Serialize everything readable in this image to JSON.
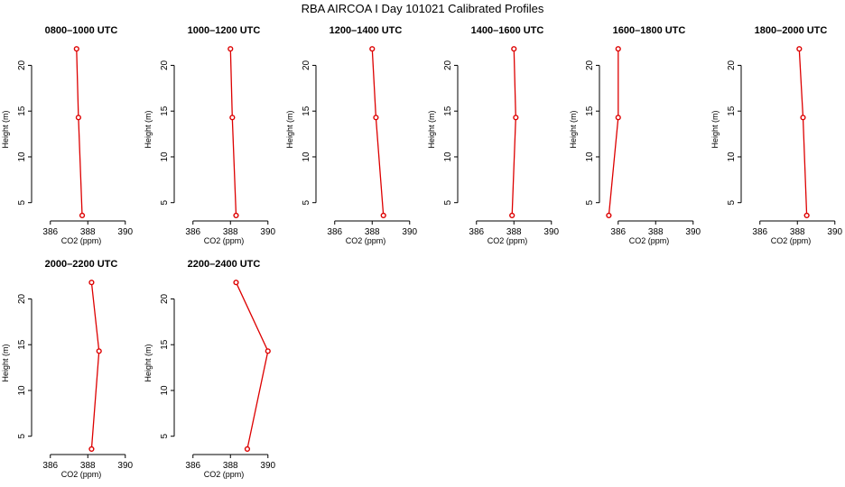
{
  "title": "RBA AIRCOA I  Day 101021  Calibrated Profiles",
  "colors": {
    "series": "#dd0000",
    "axis": "#000000"
  },
  "chart_data": [
    {
      "type": "line",
      "title": "0800–1000 UTC",
      "xlabel": "CO2 (ppm)",
      "ylabel": "Height (m)",
      "xlim": [
        385,
        390.3
      ],
      "ylim": [
        3,
        23
      ],
      "xticks": [
        386,
        388,
        390
      ],
      "yticks": [
        5,
        10,
        15,
        20
      ],
      "x": [
        387.4,
        387.5,
        387.7
      ],
      "y": [
        21.8,
        14.3,
        3.6
      ]
    },
    {
      "type": "line",
      "title": "1000–1200 UTC",
      "xlabel": "CO2 (ppm)",
      "ylabel": "Height (m)",
      "xlim": [
        385,
        390.3
      ],
      "ylim": [
        3,
        23
      ],
      "xticks": [
        386,
        388,
        390
      ],
      "yticks": [
        5,
        10,
        15,
        20
      ],
      "x": [
        388.0,
        388.1,
        388.3
      ],
      "y": [
        21.8,
        14.3,
        3.6
      ]
    },
    {
      "type": "line",
      "title": "1200–1400 UTC",
      "xlabel": "CO2 (ppm)",
      "ylabel": "Height (m)",
      "xlim": [
        385,
        390.3
      ],
      "ylim": [
        3,
        23
      ],
      "xticks": [
        386,
        388,
        390
      ],
      "yticks": [
        5,
        10,
        15,
        20
      ],
      "x": [
        388.0,
        388.2,
        388.6
      ],
      "y": [
        21.8,
        14.3,
        3.6
      ]
    },
    {
      "type": "line",
      "title": "1400–1600 UTC",
      "xlabel": "CO2 (ppm)",
      "ylabel": "Height (m)",
      "xlim": [
        385,
        390.3
      ],
      "ylim": [
        3,
        23
      ],
      "xticks": [
        386,
        388,
        390
      ],
      "yticks": [
        5,
        10,
        15,
        20
      ],
      "x": [
        388.0,
        388.1,
        387.9
      ],
      "y": [
        21.8,
        14.3,
        3.6
      ]
    },
    {
      "type": "line",
      "title": "1600–1800 UTC",
      "xlabel": "CO2 (ppm)",
      "ylabel": "Height (m)",
      "xlim": [
        385,
        390.3
      ],
      "ylim": [
        3,
        23
      ],
      "xticks": [
        386,
        388,
        390
      ],
      "yticks": [
        5,
        10,
        15,
        20
      ],
      "x": [
        386.0,
        386.0,
        385.5
      ],
      "y": [
        21.8,
        14.3,
        3.6
      ]
    },
    {
      "type": "line",
      "title": "1800–2000 UTC",
      "xlabel": "CO2 (ppm)",
      "ylabel": "Height (m)",
      "xlim": [
        385,
        390.3
      ],
      "ylim": [
        3,
        23
      ],
      "xticks": [
        386,
        388,
        390
      ],
      "yticks": [
        5,
        10,
        15,
        20
      ],
      "x": [
        388.1,
        388.3,
        388.5
      ],
      "y": [
        21.8,
        14.3,
        3.6
      ]
    },
    {
      "type": "line",
      "title": "2000–2200 UTC",
      "xlabel": "CO2 (ppm)",
      "ylabel": "Height (m)",
      "xlim": [
        385,
        390.3
      ],
      "ylim": [
        3,
        23
      ],
      "xticks": [
        386,
        388,
        390
      ],
      "yticks": [
        5,
        10,
        15,
        20
      ],
      "x": [
        388.2,
        388.6,
        388.2
      ],
      "y": [
        21.8,
        14.3,
        3.6
      ]
    },
    {
      "type": "line",
      "title": "2200–2400 UTC",
      "xlabel": "CO2 (ppm)",
      "ylabel": "Height (m)",
      "xlim": [
        385,
        390.3
      ],
      "ylim": [
        3,
        23
      ],
      "xticks": [
        386,
        388,
        390
      ],
      "yticks": [
        5,
        10,
        15,
        20
      ],
      "x": [
        388.3,
        390.0,
        388.9
      ],
      "y": [
        21.8,
        14.3,
        3.6
      ]
    }
  ]
}
